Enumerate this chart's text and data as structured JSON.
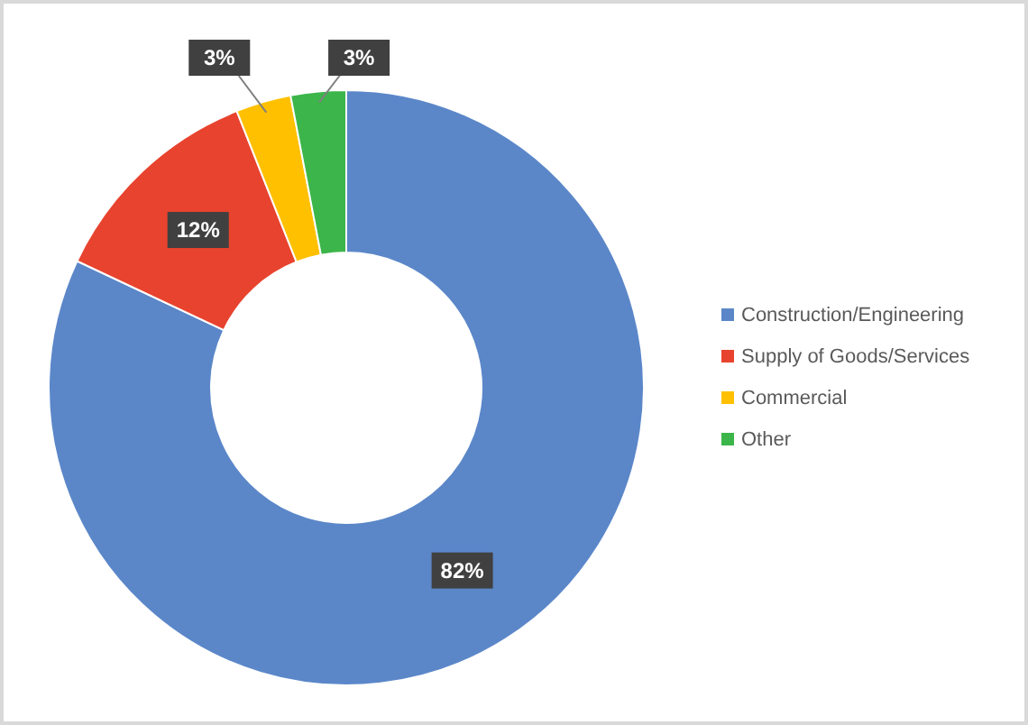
{
  "chart_data": {
    "type": "donut",
    "categories": [
      "Construction/Engineering",
      "Supply of Goods/Services",
      "Commercial",
      "Other"
    ],
    "values": [
      82,
      12,
      3,
      3
    ],
    "colors": [
      "#5b87c9",
      "#e8432e",
      "#ffc000",
      "#3cb54a"
    ],
    "value_labels": [
      "82%",
      "12%",
      "3%",
      "3%"
    ],
    "legend": "right"
  }
}
